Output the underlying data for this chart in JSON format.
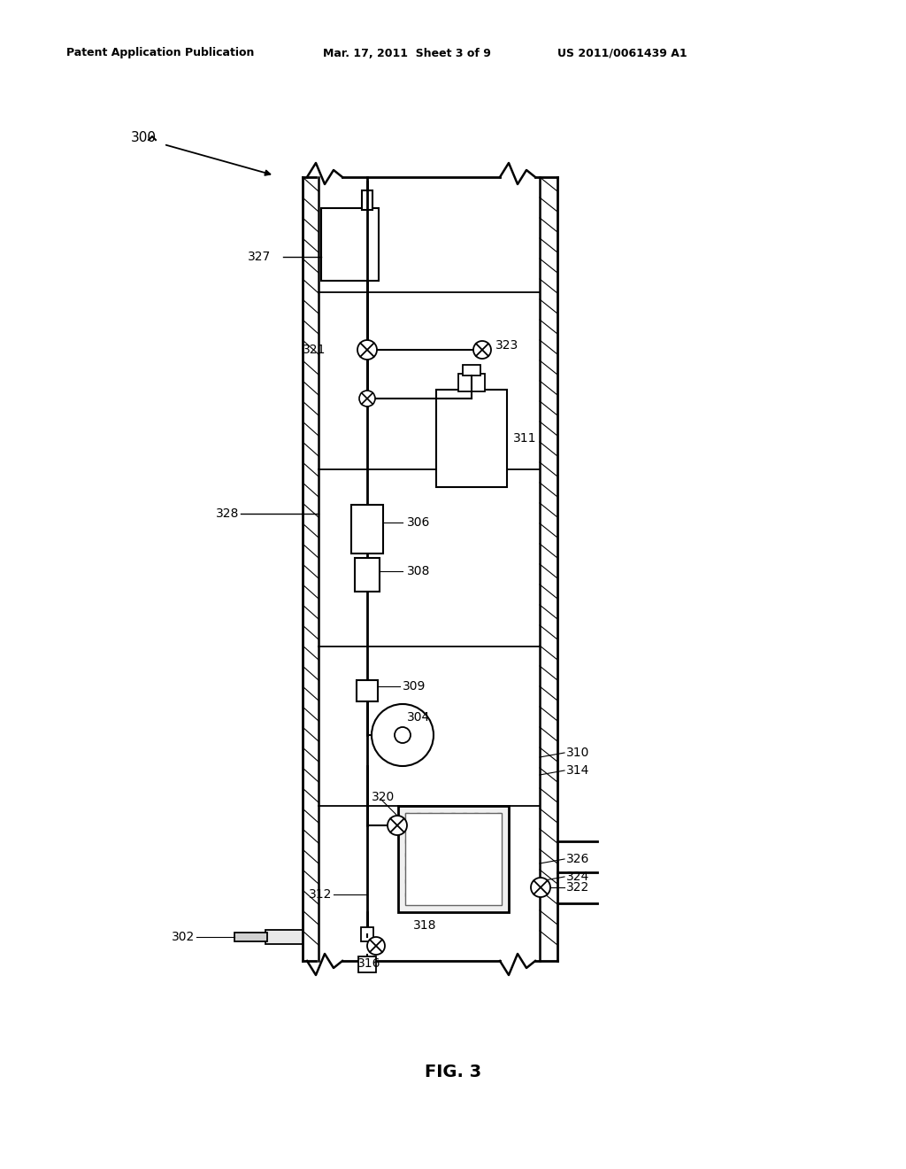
{
  "header_left": "Patent Application Publication",
  "header_mid": "Mar. 17, 2011  Sheet 3 of 9",
  "header_right": "US 2011/0061439 A1",
  "fig_label": "FIG. 3",
  "bg_color": "#ffffff",
  "line_color": "#000000",
  "label_300": "300",
  "label_302": "302",
  "label_304": "304",
  "label_306": "306",
  "label_308": "308",
  "label_309": "309",
  "label_310": "310",
  "label_311": "311",
  "label_312": "312",
  "label_314": "314",
  "label_316": "316",
  "label_318": "318",
  "label_320": "320",
  "label_321": "321",
  "label_322": "322",
  "label_323": "323",
  "label_324": "324",
  "label_326": "326",
  "label_327": "327",
  "label_328": "328"
}
